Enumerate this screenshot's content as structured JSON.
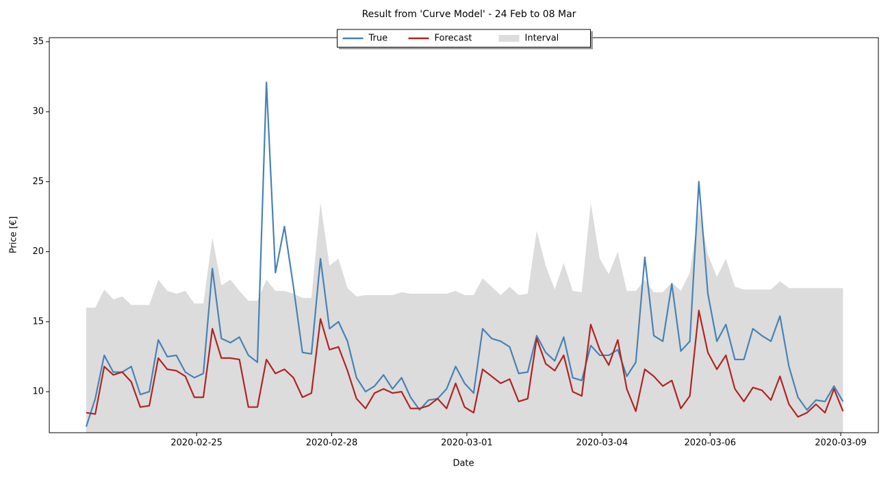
{
  "chart_data": {
    "type": "line",
    "title": "Result from 'Curve Model' - 24 Feb to 08 Mar",
    "xlabel": "Date",
    "ylabel": "Price [€]",
    "x": [
      0,
      4,
      8,
      12,
      16,
      20,
      24,
      28,
      32,
      36,
      40,
      44,
      48,
      52,
      56,
      60,
      64,
      68,
      72,
      76,
      80,
      84,
      88,
      92,
      96,
      100,
      104,
      108,
      112,
      116,
      120,
      124,
      128,
      132,
      136,
      140,
      144,
      148,
      152,
      156,
      160,
      164,
      168,
      172,
      176,
      180,
      184,
      188,
      192,
      196,
      200,
      204,
      208,
      212,
      216,
      220,
      224,
      228,
      232,
      236,
      240,
      244,
      248,
      252,
      256,
      260,
      264,
      268,
      272,
      276,
      280,
      284,
      288,
      292,
      296,
      300,
      304,
      308,
      312,
      316,
      320,
      324,
      328,
      332,
      336
    ],
    "series": [
      {
        "name": "Interval",
        "style": "band",
        "color": "#dcdcdc",
        "values": [
          16,
          16,
          17.3,
          16.6,
          16.8,
          16.2,
          16.2,
          16.2,
          18,
          17.2,
          17,
          17.2,
          16.3,
          16.3,
          21,
          17.6,
          18,
          17.2,
          16.5,
          16.5,
          18,
          17.2,
          17.2,
          17,
          16.7,
          16.7,
          23.5,
          19,
          19.5,
          17.4,
          16.8,
          16.9,
          16.9,
          16.9,
          16.9,
          17.1,
          17,
          17,
          17,
          17,
          17,
          17.2,
          16.9,
          16.9,
          18.1,
          17.5,
          16.9,
          17.5,
          16.9,
          17,
          21.5,
          19,
          17.3,
          19.2,
          17.2,
          17.1,
          23.5,
          19.5,
          18.4,
          20,
          17.2,
          17.2,
          18,
          17.1,
          17.1,
          17.8,
          17.2,
          18.5,
          23,
          19.8,
          18.2,
          19.5,
          17.5,
          17.3,
          17.3,
          17.3,
          17.3,
          17.9,
          17.4,
          17.4,
          17.4,
          17.4,
          17.4,
          17.4,
          17.4
        ]
      },
      {
        "name": "True",
        "style": "line",
        "color": "#4682b4",
        "values": [
          7.5,
          9.5,
          12.6,
          11.4,
          11.4,
          11.8,
          9.8,
          10,
          13.7,
          12.5,
          12.6,
          11.4,
          11,
          11.3,
          18.8,
          13.8,
          13.5,
          13.9,
          12.6,
          12.1,
          32.1,
          18.5,
          21.8,
          17.5,
          12.8,
          12.7,
          19.5,
          14.5,
          15,
          13.6,
          11,
          10,
          10.4,
          11.2,
          10.2,
          11,
          9.6,
          8.7,
          9.4,
          9.5,
          10.2,
          11.8,
          10.6,
          9.9,
          14.5,
          13.8,
          13.6,
          13.2,
          11.3,
          11.4,
          14,
          12.8,
          12.2,
          13.9,
          11,
          10.8,
          13.3,
          12.6,
          12.6,
          13,
          11.1,
          12.1,
          19.6,
          14,
          13.6,
          17.7,
          12.9,
          13.6,
          25,
          17,
          13.6,
          14.8,
          12.3,
          12.3,
          14.5,
          14,
          13.6,
          15.4,
          11.8,
          9.6,
          8.7,
          9.4,
          9.3,
          10.4,
          9.3
        ]
      },
      {
        "name": "Forecast",
        "style": "line",
        "color": "#b22222",
        "values": [
          8.5,
          8.4,
          11.8,
          11.2,
          11.4,
          10.7,
          8.9,
          9,
          12.4,
          11.6,
          11.5,
          11.1,
          9.6,
          9.6,
          14.5,
          12.4,
          12.4,
          12.3,
          8.9,
          8.9,
          12.3,
          11.3,
          11.6,
          11,
          9.6,
          9.9,
          15.2,
          13,
          13.2,
          11.5,
          9.5,
          8.8,
          9.9,
          10.2,
          9.9,
          10,
          8.8,
          8.8,
          9,
          9.5,
          8.8,
          10.6,
          8.9,
          8.5,
          11.6,
          11.1,
          10.6,
          10.9,
          9.3,
          9.5,
          13.8,
          12,
          11.5,
          12.6,
          10,
          9.7,
          14.8,
          13,
          11.9,
          13.7,
          10.2,
          8.6,
          11.6,
          11.1,
          10.4,
          10.8,
          8.8,
          9.7,
          15.8,
          12.8,
          11.6,
          12.6,
          10.2,
          9.3,
          10.3,
          10.1,
          9.4,
          11.1,
          9.1,
          8.2,
          8.5,
          9.1,
          8.5,
          10.2,
          8.6
        ]
      }
    ],
    "xlim": [
      -16.4,
      351.7
    ],
    "xticks": [
      {
        "value": 49,
        "label": "2020-02-25"
      },
      {
        "value": 109,
        "label": "2020-02-28"
      },
      {
        "value": 169,
        "label": "2020-03-01"
      },
      {
        "value": 229,
        "label": "2020-03-04"
      },
      {
        "value": 277,
        "label": "2020-03-06"
      },
      {
        "value": 335,
        "label": "2020-03-09"
      }
    ],
    "ylim": [
      7.07,
      35.29
    ],
    "yticks": [
      10,
      15,
      20,
      25,
      30,
      35
    ],
    "legend": "upper center",
    "grid": false
  }
}
